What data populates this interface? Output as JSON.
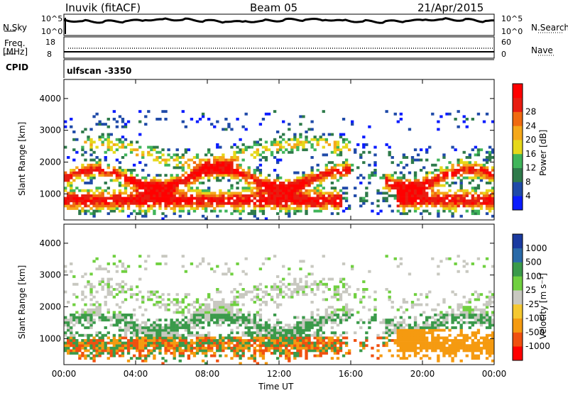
{
  "header": {
    "station": "Inuvik (fitACF)",
    "beam": "Beam 05",
    "date": "21/Apr/2015"
  },
  "status_panels": {
    "left_top_label": "N.Sky",
    "left_top_ticks": [
      "10^5",
      "10^0"
    ],
    "right_top_label": "N.Search",
    "right_top_ticks": [
      "10^5",
      "10^0"
    ],
    "left_mid_label_1": "Freq.",
    "left_mid_label_2": "[MHz]",
    "left_mid_ticks": [
      "18",
      "8"
    ],
    "right_mid_label": "Nave",
    "right_mid_ticks": [
      "60",
      "0"
    ],
    "cpid_label": "CPID",
    "cpid_value": "ulfscan -3350"
  },
  "colors": {
    "power": [
      "#0a1cff",
      "#1f4aa8",
      "#2e7a4a",
      "#40b55a",
      "#e6d81a",
      "#f5a81a",
      "#f06a10",
      "#e81c10",
      "#ff0000"
    ],
    "velocity": [
      "#ff0000",
      "#f05010",
      "#f59a10",
      "#f5c830",
      "#c8c8c0",
      "#70d040",
      "#3a9a4a",
      "#2a6aa8",
      "#1a3aa0"
    ]
  },
  "chart_data": [
    {
      "type": "heatmap",
      "name": "power",
      "xlabel": "",
      "ylabel": "Slant Range [km]",
      "x_ticks": [
        "00:00",
        "04:00",
        "08:00",
        "12:00",
        "16:00",
        "20:00",
        "00:00"
      ],
      "y_ticks": [
        "1000",
        "2000",
        "3000",
        "4000"
      ],
      "xlim": [
        0,
        24
      ],
      "ylim": [
        180,
        4600
      ],
      "colorbar": {
        "label": "Power [dB]",
        "ticks": [
          "4",
          "8",
          "12",
          "16",
          "20",
          "24",
          "28"
        ],
        "range": [
          0,
          30
        ]
      }
    },
    {
      "type": "heatmap",
      "name": "velocity",
      "xlabel": "Time UT",
      "ylabel": "Slant Range [km]",
      "x_ticks": [
        "00:00",
        "04:00",
        "08:00",
        "12:00",
        "16:00",
        "20:00",
        "00:00"
      ],
      "y_ticks": [
        "1000",
        "2000",
        "3000",
        "4000"
      ],
      "xlim": [
        0,
        24
      ],
      "ylim": [
        180,
        4600
      ],
      "colorbar": {
        "label": "Velocity [m s⁻¹]",
        "ticks": [
          "1000",
          "500",
          "100",
          "25",
          "-25",
          "-100",
          "-500",
          "-1000"
        ]
      }
    }
  ]
}
